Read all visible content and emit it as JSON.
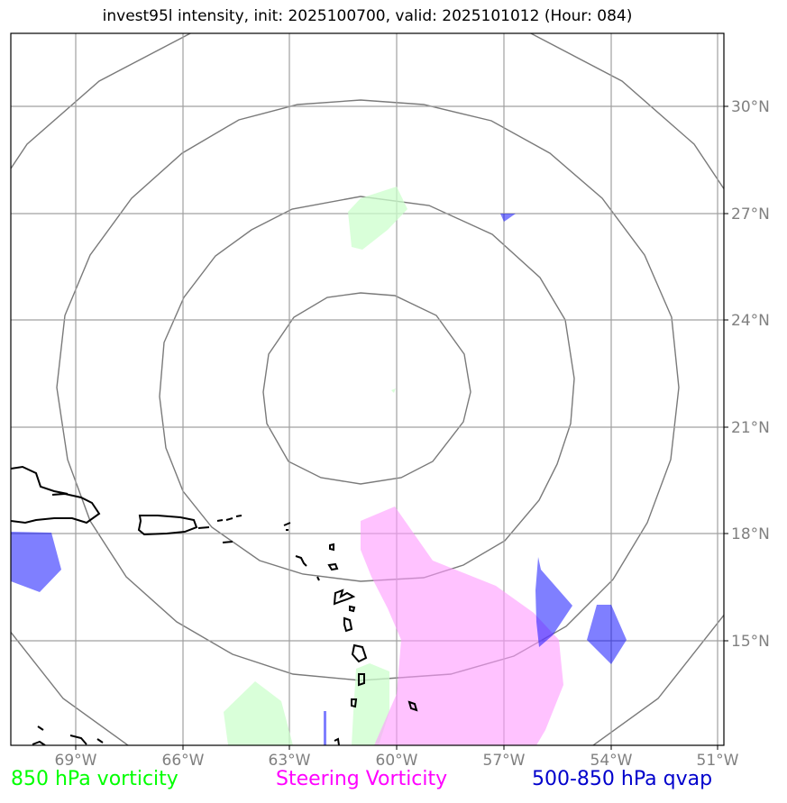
{
  "title": "invest95l intensity, init: 2025100700, valid: 2025101012 (Hour: 084)",
  "lat_labels": [
    "30°N",
    "27°N",
    "24°N",
    "21°N",
    "18°N",
    "15°N"
  ],
  "lon_labels": [
    "69°W",
    "66°W",
    "63°W",
    "60°W",
    "57°W",
    "54°W",
    "51°W"
  ],
  "legend": {
    "vort850": {
      "label": "850 hPa vorticity",
      "color": "#00ff00"
    },
    "steering": {
      "label": "Steering Vorticity",
      "color": "#ff00ff"
    },
    "qvap": {
      "label": "500-850 hPa qvap",
      "color": "#0000cc"
    }
  },
  "map": {
    "lon_range": [
      -70.8,
      -50.8
    ],
    "lat_range": [
      12.0,
      32.0
    ],
    "gridlines": true,
    "range_rings_deg": [
      3,
      6,
      9,
      12
    ]
  }
}
